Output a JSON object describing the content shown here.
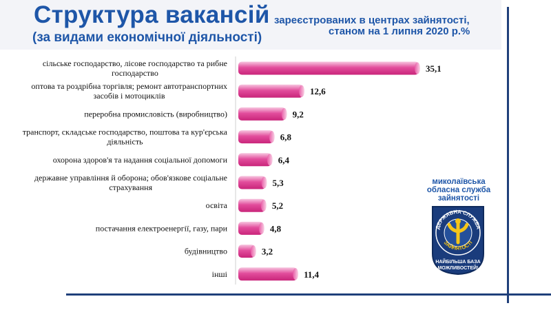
{
  "header": {
    "title": "Структура вакансій",
    "title_sub": "(за видами економічної діяльності)",
    "subtitle_line1": "зареєстрованих в центрах зайнятості,",
    "subtitle_line2": "станом на 1 липня 2020 р.%"
  },
  "logo": {
    "caption_lines": [
      "миколаївська",
      "обласна служба",
      "зайнятості"
    ],
    "emblem_lettering": [
      "ДЕРЖАВНА СЛУЖБА",
      "ЗАЙНЯТОСТІ",
      "НАЙБІЛЬША БАЗА",
      "МОЖЛИВОСТЕЙ!"
    ]
  },
  "colors": {
    "title": "#1e56a8",
    "bar": "#e23e93",
    "bar_light": "#f3b6d6",
    "frame": "#1f3f7a"
  },
  "chart_data": {
    "type": "bar",
    "orientation": "horizontal",
    "categories": [
      [
        "сільське господарство, лісове господарство та рибне",
        "господарство"
      ],
      [
        "оптова та роздрібна торгівля; ремонт автотранспортних",
        "засобів і мотоциклів"
      ],
      [
        "переробна промисловість (виробництво)"
      ],
      [
        "транспорт, складське господарство, поштова та кур'єрська",
        "діяльність"
      ],
      [
        "охорона здоров'я та надання соціальної допомоги"
      ],
      [
        "державне управління й оборона; обов'язкове соціальне",
        "страхування"
      ],
      [
        "освіта"
      ],
      [
        "постачання електроенергії, газу, пари"
      ],
      [
        "будівництво"
      ],
      [
        "інші"
      ]
    ],
    "values": [
      35.1,
      12.6,
      9.2,
      6.8,
      6.4,
      5.3,
      5.2,
      4.8,
      3.2,
      11.4
    ],
    "value_labels": [
      "35,1",
      "12,6",
      "9,2",
      "6,8",
      "6,4",
      "5,3",
      "5,2",
      "4,8",
      "3,2",
      "11,4"
    ],
    "xlim": [
      0,
      36
    ],
    "grid": false,
    "legend": "none"
  }
}
